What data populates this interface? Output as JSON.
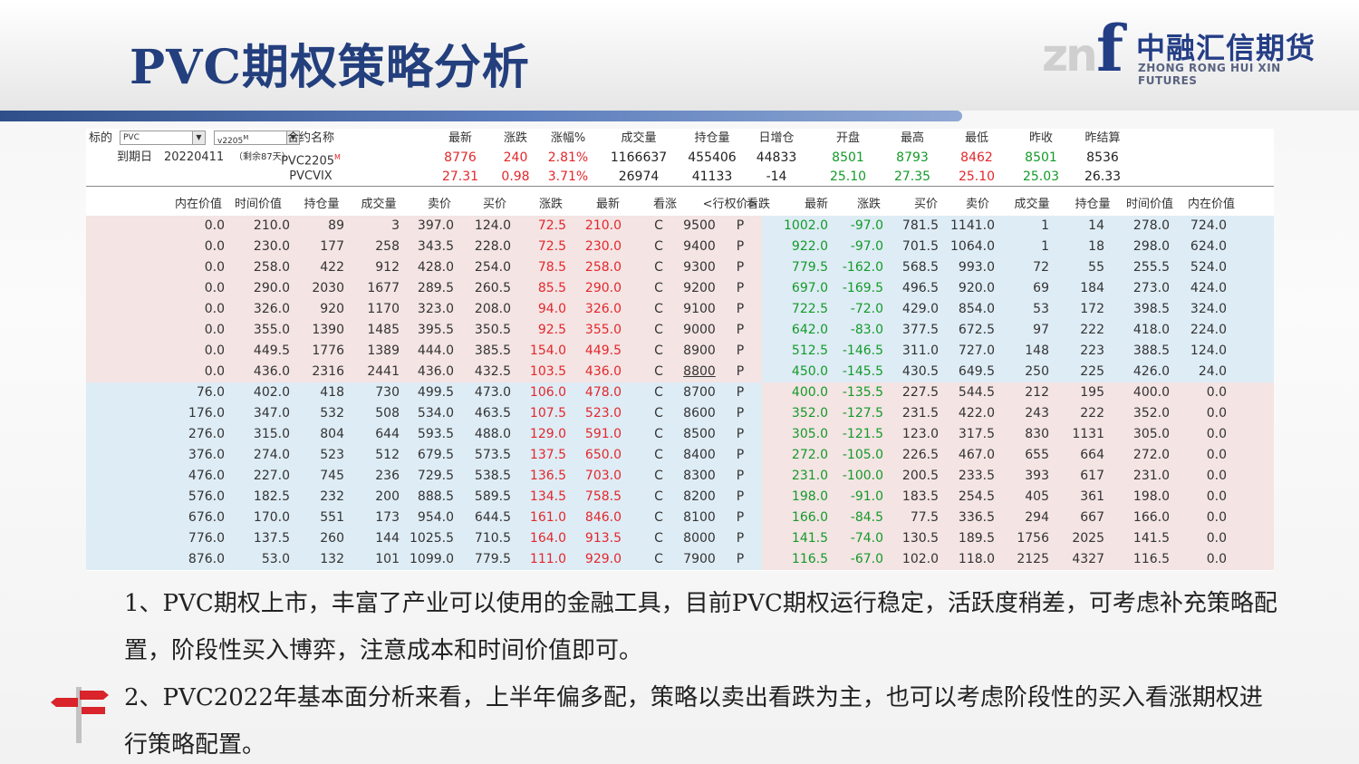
{
  "slide": {
    "title": "PVC期权策略分析",
    "logo": {
      "mark_left": "zn",
      "mark_right": "f",
      "cn": "中融汇信期货",
      "en": "ZHONG RONG HUI XIN FUTURES"
    }
  },
  "quote_header": {
    "underlying_label": "标的",
    "underlying_value": "PVC",
    "contract_value": "v2205",
    "contract_flag": "M",
    "expiry_label": "到期日",
    "expiry_date": "20220411",
    "days_left": "（剩余87天）",
    "columns": [
      "合约名称",
      "最新",
      "涨跌",
      "涨幅%",
      "成交量",
      "持仓量",
      "日增仓",
      "开盘",
      "最高",
      "最低",
      "昨收",
      "昨结算"
    ],
    "rows": [
      {
        "name": "PVC2205",
        "flag": "M",
        "cells": [
          "8776",
          "240",
          "2.81%",
          "1166637",
          "455406",
          "44833",
          "8501",
          "8793",
          "8462",
          "8501",
          "8536"
        ]
      },
      {
        "name": "PVCVIX",
        "flag": "",
        "cells": [
          "27.31",
          "0.98",
          "3.71%",
          "26974",
          "41133",
          "-14",
          "25.10",
          "27.35",
          "25.10",
          "25.03",
          "26.33"
        ]
      }
    ]
  },
  "option_table": {
    "columns": [
      "内在价值",
      "时间价值",
      "持仓量",
      "成交量",
      "卖价",
      "买价",
      "涨跌",
      "最新",
      "看涨",
      "<行权价>",
      "看跌",
      "最新",
      "涨跌",
      "买价",
      "卖价",
      "成交量",
      "持仓量",
      "时间价值",
      "内在价值"
    ],
    "rows": [
      {
        "call": [
          "0.0",
          "210.0",
          "89",
          "3",
          "397.0",
          "124.0",
          "72.5",
          "210.0"
        ],
        "cflag": "C",
        "strike": "9500",
        "pflag": "P",
        "put": [
          "1002.0",
          "-97.0",
          "781.5",
          "1141.0",
          "1",
          "14",
          "278.0",
          "724.0"
        ]
      },
      {
        "call": [
          "0.0",
          "230.0",
          "177",
          "258",
          "343.5",
          "228.0",
          "72.5",
          "230.0"
        ],
        "cflag": "C",
        "strike": "9400",
        "pflag": "P",
        "put": [
          "922.0",
          "-97.0",
          "701.5",
          "1064.0",
          "1",
          "18",
          "298.0",
          "624.0"
        ]
      },
      {
        "call": [
          "0.0",
          "258.0",
          "422",
          "912",
          "428.0",
          "254.0",
          "78.5",
          "258.0"
        ],
        "cflag": "C",
        "strike": "9300",
        "pflag": "P",
        "put": [
          "779.5",
          "-162.0",
          "568.5",
          "993.0",
          "72",
          "55",
          "255.5",
          "524.0"
        ]
      },
      {
        "call": [
          "0.0",
          "290.0",
          "2030",
          "1677",
          "289.5",
          "260.5",
          "85.5",
          "290.0"
        ],
        "cflag": "C",
        "strike": "9200",
        "pflag": "P",
        "put": [
          "697.0",
          "-169.5",
          "496.5",
          "920.0",
          "69",
          "184",
          "273.0",
          "424.0"
        ]
      },
      {
        "call": [
          "0.0",
          "326.0",
          "920",
          "1170",
          "323.0",
          "208.0",
          "94.0",
          "326.0"
        ],
        "cflag": "C",
        "strike": "9100",
        "pflag": "P",
        "put": [
          "722.5",
          "-72.0",
          "429.0",
          "854.0",
          "53",
          "172",
          "398.5",
          "324.0"
        ]
      },
      {
        "call": [
          "0.0",
          "355.0",
          "1390",
          "1485",
          "395.5",
          "350.5",
          "92.5",
          "355.0"
        ],
        "cflag": "C",
        "strike": "9000",
        "pflag": "P",
        "put": [
          "642.0",
          "-83.0",
          "377.5",
          "672.5",
          "97",
          "222",
          "418.0",
          "224.0"
        ]
      },
      {
        "call": [
          "0.0",
          "449.5",
          "1776",
          "1389",
          "444.0",
          "385.5",
          "154.0",
          "449.5"
        ],
        "cflag": "C",
        "strike": "8900",
        "pflag": "P",
        "put": [
          "512.5",
          "-146.5",
          "311.0",
          "727.0",
          "148",
          "223",
          "388.5",
          "124.0"
        ]
      },
      {
        "call": [
          "0.0",
          "436.0",
          "2316",
          "2441",
          "436.0",
          "432.5",
          "103.5",
          "436.0"
        ],
        "cflag": "C",
        "strike": "8800",
        "pflag": "P",
        "put": [
          "450.0",
          "-145.5",
          "430.5",
          "649.5",
          "250",
          "225",
          "426.0",
          "24.0"
        ]
      },
      {
        "call": [
          "76.0",
          "402.0",
          "418",
          "730",
          "499.5",
          "473.0",
          "106.0",
          "478.0"
        ],
        "cflag": "C",
        "strike": "8700",
        "pflag": "P",
        "put": [
          "400.0",
          "-135.5",
          "227.5",
          "544.5",
          "212",
          "195",
          "400.0",
          "0.0"
        ]
      },
      {
        "call": [
          "176.0",
          "347.0",
          "532",
          "508",
          "534.0",
          "463.5",
          "107.5",
          "523.0"
        ],
        "cflag": "C",
        "strike": "8600",
        "pflag": "P",
        "put": [
          "352.0",
          "-127.5",
          "231.5",
          "422.0",
          "243",
          "222",
          "352.0",
          "0.0"
        ]
      },
      {
        "call": [
          "276.0",
          "315.0",
          "804",
          "644",
          "593.5",
          "488.0",
          "129.0",
          "591.0"
        ],
        "cflag": "C",
        "strike": "8500",
        "pflag": "P",
        "put": [
          "305.0",
          "-121.5",
          "123.0",
          "317.5",
          "830",
          "1131",
          "305.0",
          "0.0"
        ]
      },
      {
        "call": [
          "376.0",
          "274.0",
          "523",
          "512",
          "679.5",
          "573.5",
          "137.5",
          "650.0"
        ],
        "cflag": "C",
        "strike": "8400",
        "pflag": "P",
        "put": [
          "272.0",
          "-105.0",
          "226.5",
          "467.0",
          "655",
          "664",
          "272.0",
          "0.0"
        ]
      },
      {
        "call": [
          "476.0",
          "227.0",
          "745",
          "236",
          "729.5",
          "538.5",
          "136.5",
          "703.0"
        ],
        "cflag": "C",
        "strike": "8300",
        "pflag": "P",
        "put": [
          "231.0",
          "-100.0",
          "200.5",
          "233.5",
          "393",
          "617",
          "231.0",
          "0.0"
        ]
      },
      {
        "call": [
          "576.0",
          "182.5",
          "232",
          "200",
          "888.5",
          "589.5",
          "134.5",
          "758.5"
        ],
        "cflag": "C",
        "strike": "8200",
        "pflag": "P",
        "put": [
          "198.0",
          "-91.0",
          "183.5",
          "254.5",
          "405",
          "361",
          "198.0",
          "0.0"
        ]
      },
      {
        "call": [
          "676.0",
          "170.0",
          "551",
          "173",
          "954.0",
          "644.5",
          "161.0",
          "846.0"
        ],
        "cflag": "C",
        "strike": "8100",
        "pflag": "P",
        "put": [
          "166.0",
          "-84.5",
          "77.5",
          "336.5",
          "294",
          "667",
          "166.0",
          "0.0"
        ]
      },
      {
        "call": [
          "776.0",
          "137.5",
          "260",
          "144",
          "1025.5",
          "710.5",
          "164.0",
          "913.5"
        ],
        "cflag": "C",
        "strike": "8000",
        "pflag": "P",
        "put": [
          "141.5",
          "-74.0",
          "130.5",
          "189.5",
          "1756",
          "2025",
          "141.5",
          "0.0"
        ]
      },
      {
        "call": [
          "876.0",
          "53.0",
          "132",
          "101",
          "1099.0",
          "779.5",
          "111.0",
          "929.0"
        ],
        "cflag": "C",
        "strike": "7900",
        "pflag": "P",
        "put": [
          "116.5",
          "-67.0",
          "102.0",
          "118.0",
          "2125",
          "4327",
          "116.5",
          "0.0"
        ]
      }
    ]
  },
  "notes": [
    "1、PVC期权上市，丰富了产业可以使用的金融工具，目前PVC期权运行稳定，活跃度稍差，可考虑补充策略配置，阶段性买入博弈，注意成本和时间价值即可。",
    "2、PVC2022年基本面分析来看，上半年偏多配，策略以卖出看跌为主，也可以考虑阶段性的买入看涨期权进行策略配置。"
  ],
  "colors": {
    "title": "#233f7d",
    "up": "#e3272b",
    "down": "#149a2a",
    "itm_pink": "#f4e4e4",
    "otm_blue": "#deecf5"
  },
  "icons": [
    "signpost-icon",
    "dropdown-arrow-icon"
  ]
}
